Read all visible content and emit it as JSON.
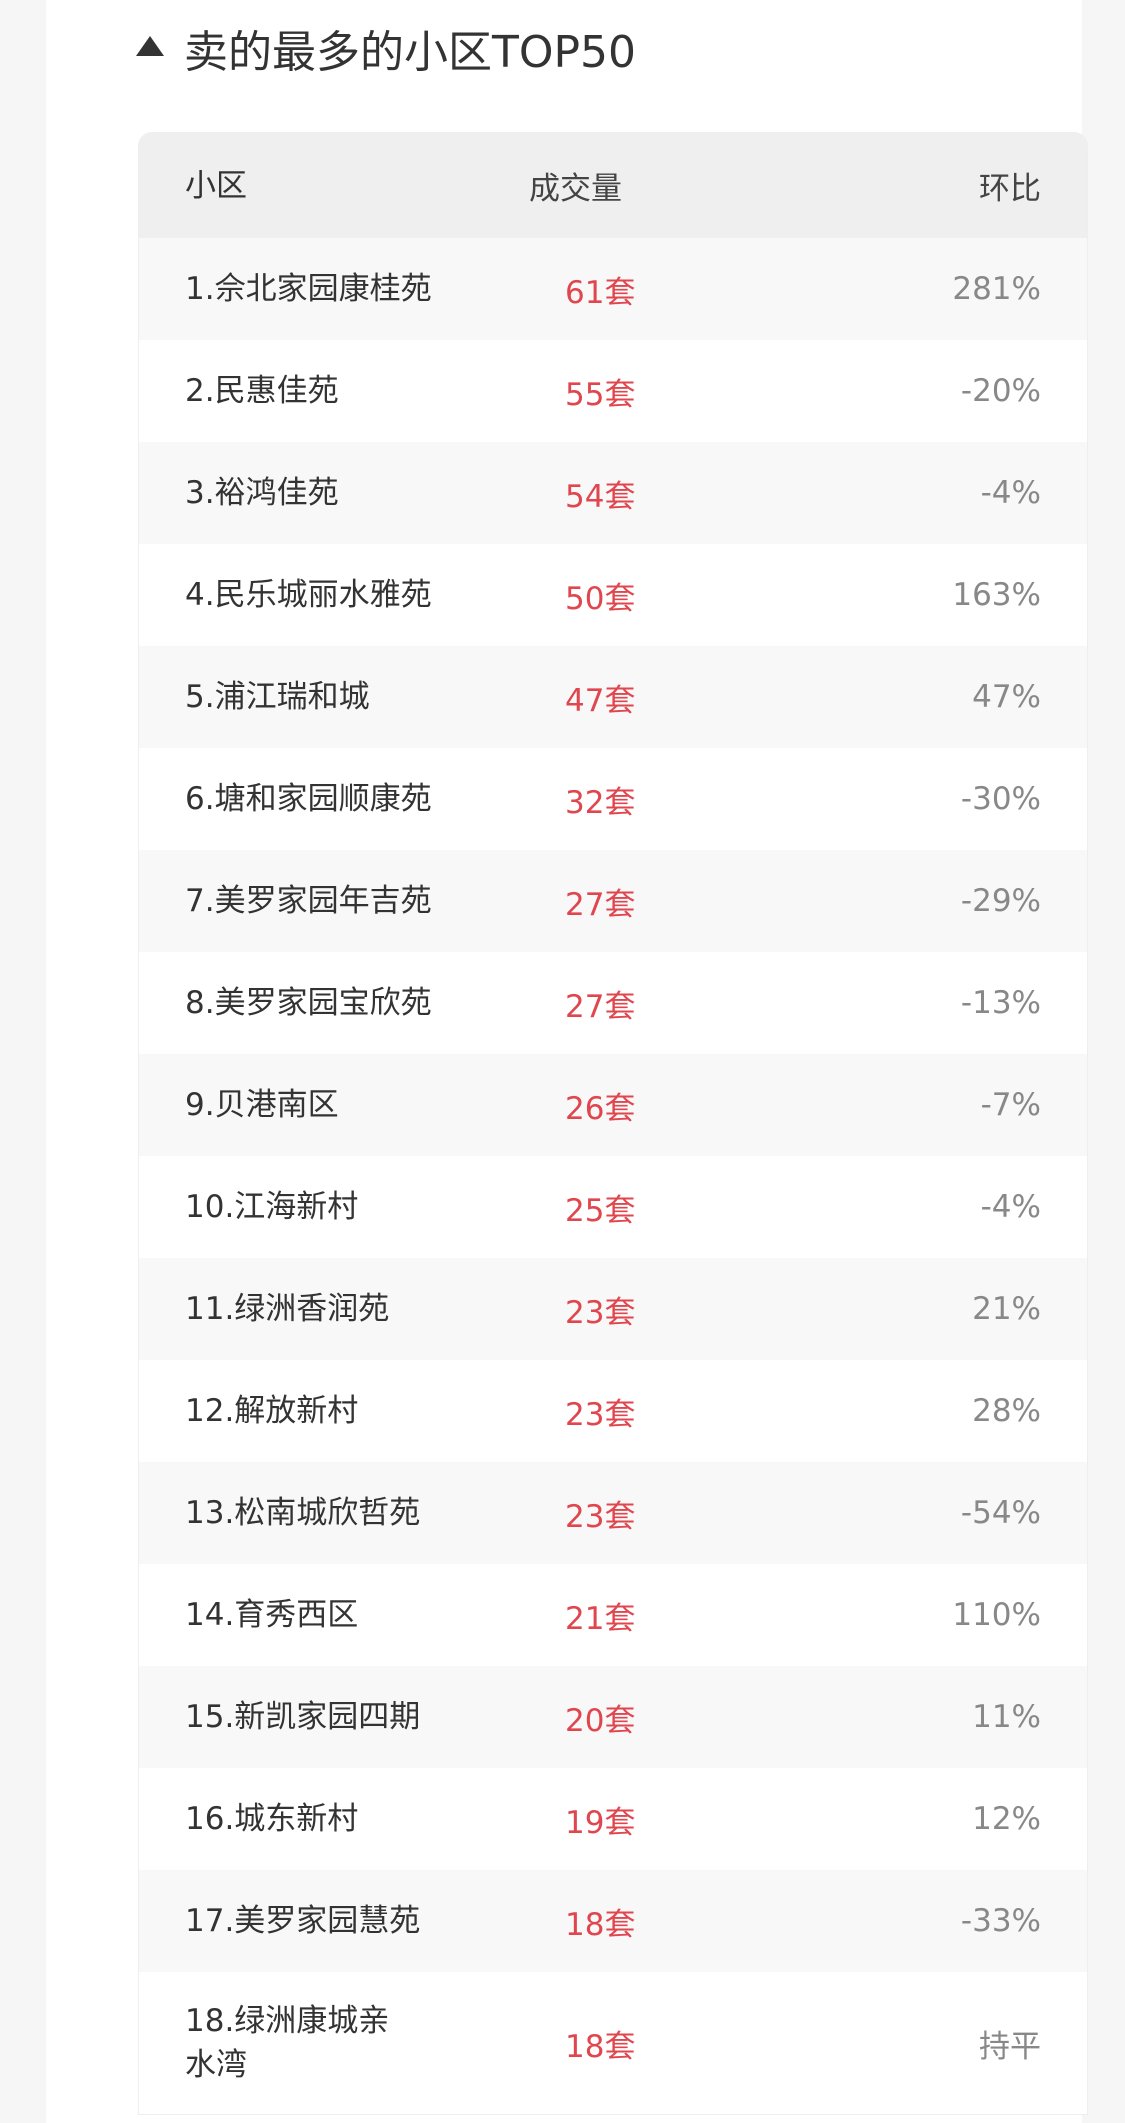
{
  "section": {
    "title": "卖的最多的小区TOP50",
    "icon": "triangle-up-icon"
  },
  "table": {
    "headers": [
      "小区",
      "成交量",
      "环比"
    ],
    "rows": [
      {
        "name": "1.佘北家园康桂苑",
        "volume": "61套",
        "change": "281%"
      },
      {
        "name": "2.民惠佳苑",
        "volume": "55套",
        "change": "-20%"
      },
      {
        "name": "3.裕鸿佳苑",
        "volume": "54套",
        "change": "-4%"
      },
      {
        "name": "4.民乐城丽水雅苑",
        "volume": "50套",
        "change": "163%"
      },
      {
        "name": "5.浦江瑞和城",
        "volume": "47套",
        "change": "47%"
      },
      {
        "name": "6.塘和家园顺康苑",
        "volume": "32套",
        "change": "-30%"
      },
      {
        "name": "7.美罗家园年吉苑",
        "volume": "27套",
        "change": "-29%"
      },
      {
        "name": "8.美罗家园宝欣苑",
        "volume": "27套",
        "change": "-13%"
      },
      {
        "name": "9.贝港南区",
        "volume": "26套",
        "change": "-7%"
      },
      {
        "name": "10.江海新村",
        "volume": "25套",
        "change": "-4%"
      },
      {
        "name": "11.绿洲香润苑",
        "volume": "23套",
        "change": "21%"
      },
      {
        "name": "12.解放新村",
        "volume": "23套",
        "change": "28%"
      },
      {
        "name": "13.松南城欣哲苑",
        "volume": "23套",
        "change": "-54%"
      },
      {
        "name": "14.育秀西区",
        "volume": "21套",
        "change": "110%"
      },
      {
        "name": "15.新凯家园四期",
        "volume": "20套",
        "change": "11%"
      },
      {
        "name": "16.城东新村",
        "volume": "19套",
        "change": "12%"
      },
      {
        "name": "17.美罗家园慧苑",
        "volume": "18套",
        "change": "-33%"
      },
      {
        "name": "18.绿洲康城亲水湾",
        "volume": "18套",
        "change": "持平"
      }
    ]
  },
  "colors": {
    "volume": "#e0464e",
    "change": "#888888",
    "header_bg": "#efefef"
  }
}
